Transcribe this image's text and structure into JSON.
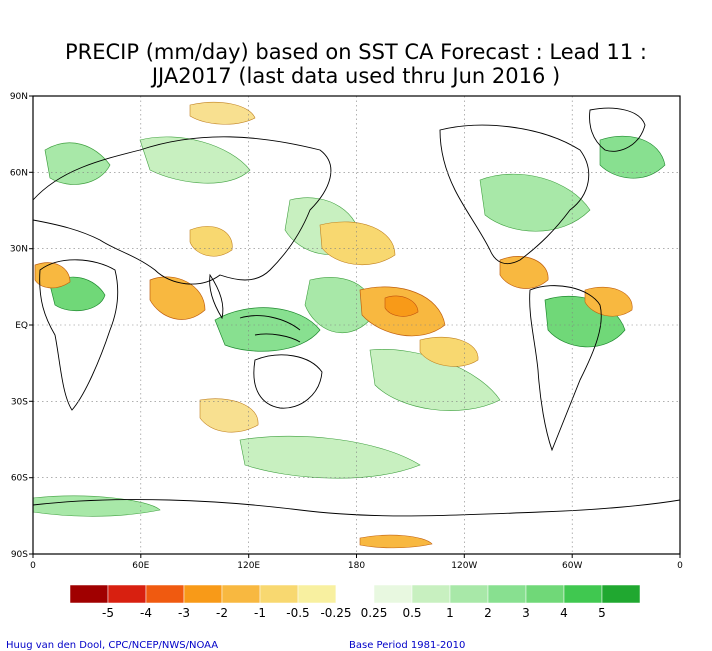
{
  "title": {
    "line1": "PRECIP (mm/day) based on SST CA Forecast : Lead 11 :",
    "line2": "JJA2017 (last data used thru Jun 2016 )"
  },
  "map": {
    "lat_ticks": [
      "90N",
      "60N",
      "30N",
      "EQ",
      "30S",
      "60S",
      "90S"
    ],
    "lon_ticks": [
      "0",
      "60E",
      "120E",
      "180",
      "120W",
      "60W",
      "0"
    ],
    "grid": true
  },
  "legend": {
    "colors": [
      "#a00000",
      "#d82010",
      "#f05a10",
      "#f89a18",
      "#f8b840",
      "#f8d870",
      "#f8f0a0",
      "#ffffff",
      "#e8f8e0",
      "#c8f0c0",
      "#a8e8a8",
      "#88e090",
      "#70d878",
      "#40c850",
      "#20a830"
    ],
    "labels": [
      "-5",
      "-4",
      "-3",
      "-2",
      "-1",
      "-0.5",
      "-0.25",
      "0.25",
      "0.5",
      "1",
      "2",
      "3",
      "4",
      "5"
    ]
  },
  "credits": {
    "left": "Huug van den Dool, CPC/NCEP/NWS/NOAA",
    "right": "Base Period 1981-2010"
  },
  "colors": {
    "land_outline": "#000000",
    "credit_text": "#0000c8"
  }
}
